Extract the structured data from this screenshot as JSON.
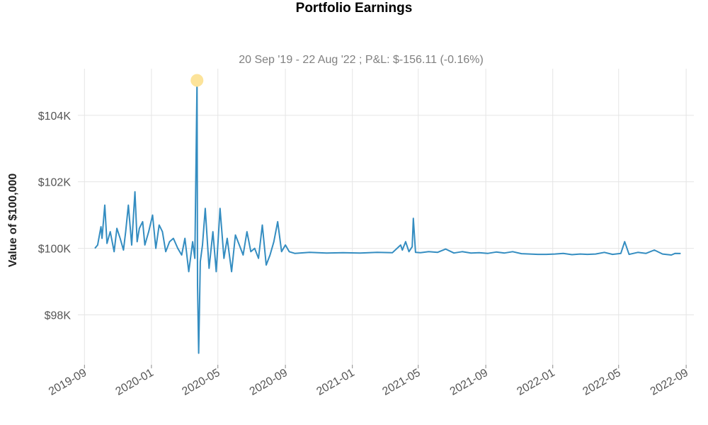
{
  "chart_data": {
    "type": "line",
    "title": "Portfolio Earnings",
    "subtitle": "20 Sep '19 - 22 Aug '22 ;  P&L: $-156.11 (-0.16%)",
    "ylabel": "Value of  $100,000",
    "xlabel": "",
    "grid": true,
    "legend": "none",
    "x_range": [
      "2019-08-20",
      "2022-09-15"
    ],
    "y_range": [
      96500,
      105400
    ],
    "y_ticks": [
      98000,
      100000,
      102000,
      104000
    ],
    "y_tick_labels": [
      "$98K",
      "$100K",
      "$102K",
      "$104K"
    ],
    "x_ticks": [
      "2019-09-01",
      "2020-01-01",
      "2020-05-01",
      "2020-09-01",
      "2021-01-01",
      "2021-05-01",
      "2021-09-01",
      "2022-01-01",
      "2022-05-01",
      "2022-09-01"
    ],
    "x_tick_labels": [
      "2019-09",
      "2020-01",
      "2020-05",
      "2020-09",
      "2021-01",
      "2021-05",
      "2021-09",
      "2022-01",
      "2022-05",
      "2022-09"
    ],
    "line_color": "#348dc1",
    "highlight_color": "#fce39a",
    "highlight_point": {
      "x": "2020-03-24",
      "y": 105050
    },
    "series": [
      {
        "x": [
          "2019-09-20",
          "2019-09-25",
          "2019-10-01",
          "2019-10-03",
          "2019-10-08",
          "2019-10-12",
          "2019-10-18",
          "2019-10-25",
          "2019-10-30",
          "2019-11-05",
          "2019-11-11",
          "2019-11-15",
          "2019-11-20",
          "2019-11-26",
          "2019-12-02",
          "2019-12-06",
          "2019-12-10",
          "2019-12-16",
          "2019-12-20",
          "2019-12-27",
          "2020-01-03",
          "2020-01-09",
          "2020-01-15",
          "2020-01-21",
          "2020-01-27",
          "2020-02-03",
          "2020-02-10",
          "2020-02-18",
          "2020-02-25",
          "2020-03-02",
          "2020-03-09",
          "2020-03-16",
          "2020-03-20",
          "2020-03-24",
          "2020-03-25",
          "2020-03-27",
          "2020-03-30",
          "2020-04-03",
          "2020-04-08",
          "2020-04-15",
          "2020-04-22",
          "2020-04-28",
          "2020-05-05",
          "2020-05-12",
          "2020-05-18",
          "2020-05-26",
          "2020-06-02",
          "2020-06-09",
          "2020-06-16",
          "2020-06-23",
          "2020-06-30",
          "2020-07-07",
          "2020-07-14",
          "2020-07-21",
          "2020-07-28",
          "2020-08-04",
          "2020-08-11",
          "2020-08-18",
          "2020-08-25",
          "2020-09-01",
          "2020-09-08",
          "2020-09-18",
          "2020-10-15",
          "2020-11-15",
          "2020-12-15",
          "2021-01-15",
          "2021-02-15",
          "2021-03-15",
          "2021-03-30",
          "2021-04-02",
          "2021-04-08",
          "2021-04-14",
          "2021-04-20",
          "2021-04-22",
          "2021-04-26",
          "2021-05-05",
          "2021-05-20",
          "2021-06-05",
          "2021-06-20",
          "2021-07-05",
          "2021-07-20",
          "2021-08-05",
          "2021-08-20",
          "2021-09-05",
          "2021-09-20",
          "2021-10-05",
          "2021-10-20",
          "2021-11-05",
          "2021-11-20",
          "2021-12-05",
          "2021-12-20",
          "2022-01-05",
          "2022-01-20",
          "2022-02-05",
          "2022-02-20",
          "2022-03-05",
          "2022-03-20",
          "2022-04-05",
          "2022-04-20",
          "2022-05-05",
          "2022-05-12",
          "2022-05-20",
          "2022-06-05",
          "2022-06-20",
          "2022-07-05",
          "2022-07-20",
          "2022-08-05",
          "2022-08-12",
          "2022-08-22"
        ],
        "y": [
          100000,
          100100,
          100650,
          100300,
          101300,
          100150,
          100500,
          99900,
          100600,
          100300,
          99950,
          100500,
          101300,
          100100,
          101700,
          100200,
          100600,
          100800,
          100100,
          100500,
          101000,
          100000,
          100700,
          100500,
          99900,
          100200,
          100300,
          100000,
          99800,
          100300,
          99300,
          100200,
          99700,
          105050,
          98900,
          96850,
          99600,
          100100,
          101200,
          99400,
          100500,
          99300,
          101200,
          99700,
          100300,
          99300,
          100400,
          100100,
          99800,
          100500,
          99900,
          100000,
          99700,
          100700,
          99500,
          99800,
          100200,
          100800,
          99900,
          100100,
          99900,
          99850,
          99880,
          99860,
          99870,
          99860,
          99880,
          99870,
          100100,
          99950,
          100200,
          99900,
          100050,
          100900,
          99880,
          99870,
          99900,
          99880,
          99980,
          99860,
          99900,
          99860,
          99870,
          99850,
          99890,
          99860,
          99900,
          99840,
          99830,
          99820,
          99820,
          99830,
          99850,
          99810,
          99830,
          99820,
          99830,
          99880,
          99820,
          99850,
          100200,
          99820,
          99880,
          99850,
          99950,
          99830,
          99800,
          99850,
          99844
        ]
      }
    ]
  }
}
